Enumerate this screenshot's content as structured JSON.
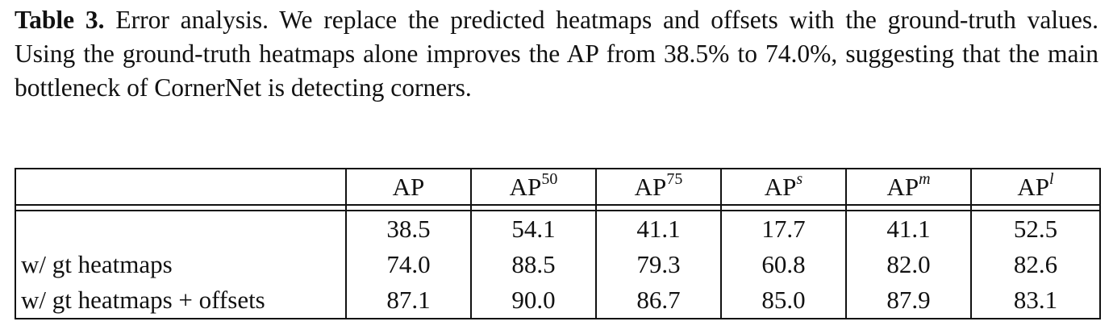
{
  "caption": {
    "label": "Table 3.",
    "text": "Error analysis. We replace the predicted heatmaps and offsets with the ground-truth values. Using the ground-truth heatmaps alone improves the AP from 38.5% to 74.0%, suggesting that the main bottleneck of CornerNet is detecting cor­ners."
  },
  "table": {
    "header": {
      "row_label": "",
      "columns": [
        {
          "base": "AP",
          "sup": "",
          "italic": false
        },
        {
          "base": "AP",
          "sup": "50",
          "italic": false
        },
        {
          "base": "AP",
          "sup": "75",
          "italic": false
        },
        {
          "base": "AP",
          "sup": "s",
          "italic": true
        },
        {
          "base": "AP",
          "sup": "m",
          "italic": true
        },
        {
          "base": "AP",
          "sup": "l",
          "italic": true
        }
      ]
    },
    "rows": [
      {
        "label": "",
        "values": [
          "38.5",
          "54.1",
          "41.1",
          "17.7",
          "41.1",
          "52.5"
        ]
      },
      {
        "label": "w/ gt heatmaps",
        "values": [
          "74.0",
          "88.5",
          "79.3",
          "60.8",
          "82.0",
          "82.6"
        ]
      },
      {
        "label": "w/ gt heatmaps + offsets",
        "values": [
          "87.1",
          "90.0",
          "86.7",
          "85.0",
          "87.9",
          "83.1"
        ]
      }
    ]
  }
}
